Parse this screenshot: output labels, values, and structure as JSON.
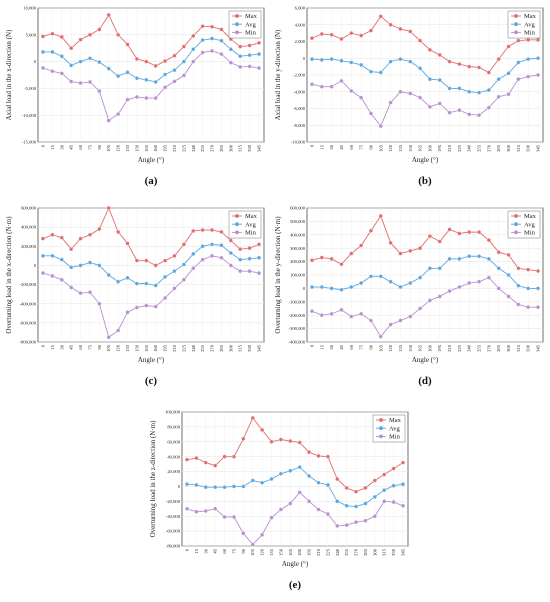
{
  "legend_labels": [
    "Max",
    "Avg",
    "Min"
  ],
  "colors": {
    "Max": "#e26b6b",
    "Avg": "#5aa7df",
    "Min": "#b78fd0"
  },
  "chart_data": [
    {
      "id": "a",
      "type": "line",
      "caption": "(a)",
      "title": "",
      "xlabel": "Angle (°)",
      "ylabel": "Axial load in the x-direction (N)",
      "ylim": [
        -15000,
        10000
      ],
      "yticks": [
        -15000,
        -10000,
        -5000,
        0,
        5000,
        10000
      ],
      "ytick_labels": [
        "-15,000",
        "-10,000",
        "-5,000",
        "0",
        "5,000",
        "10,000"
      ],
      "legend_position": "top-right",
      "grid": true,
      "x": [
        0,
        15,
        30,
        45,
        60,
        75,
        90,
        105,
        120,
        135,
        150,
        165,
        180,
        195,
        210,
        225,
        240,
        255,
        270,
        285,
        300,
        315,
        330,
        345
      ],
      "series": [
        {
          "name": "Max",
          "values": [
            4700,
            5200,
            4600,
            2500,
            4100,
            5000,
            6000,
            8700,
            5000,
            3200,
            500,
            0,
            -800,
            100,
            1100,
            2800,
            4800,
            6600,
            6500,
            6000,
            4200,
            2800,
            3000,
            3500
          ]
        },
        {
          "name": "Avg",
          "values": [
            1800,
            1800,
            1000,
            -700,
            0,
            600,
            -100,
            -1300,
            -2700,
            -2000,
            -3100,
            -3400,
            -3800,
            -2400,
            -1600,
            0,
            2300,
            4000,
            4300,
            3900,
            2300,
            1000,
            1200,
            1400
          ]
        },
        {
          "name": "Min",
          "values": [
            -1200,
            -1800,
            -2200,
            -3700,
            -4000,
            -3800,
            -5500,
            -11000,
            -9800,
            -7100,
            -6600,
            -6800,
            -6800,
            -4800,
            -3700,
            -2600,
            0,
            1700,
            2000,
            1400,
            -200,
            -1000,
            -900,
            -1200
          ]
        }
      ]
    },
    {
      "id": "b",
      "type": "line",
      "caption": "(b)",
      "title": "",
      "xlabel": "Angle (°)",
      "ylabel": "Axial load in the y-direction (N)",
      "ylim": [
        -10000,
        6000
      ],
      "yticks": [
        -10000,
        -8000,
        -6000,
        -4000,
        -2000,
        0,
        2000,
        4000,
        6000
      ],
      "ytick_labels": [
        "-10,000",
        "-8,000",
        "-6,000",
        "-4,000",
        "-2,000",
        "0",
        "2,000",
        "4,000",
        "6,000"
      ],
      "legend_position": "top-right",
      "grid": true,
      "x": [
        0,
        15,
        30,
        45,
        60,
        75,
        90,
        105,
        120,
        135,
        150,
        165,
        180,
        195,
        210,
        225,
        240,
        255,
        270,
        285,
        300,
        315,
        330,
        345
      ],
      "series": [
        {
          "name": "Max",
          "values": [
            2400,
            2900,
            2800,
            2300,
            3000,
            2700,
            3300,
            5000,
            4000,
            3500,
            3200,
            2100,
            1000,
            400,
            -400,
            -700,
            -1000,
            -1100,
            -1700,
            -100,
            1400,
            2100,
            2200,
            2200
          ]
        },
        {
          "name": "Avg",
          "values": [
            -100,
            -200,
            -100,
            -300,
            -500,
            -800,
            -1600,
            -1700,
            -400,
            -100,
            -400,
            -1200,
            -2500,
            -2600,
            -3600,
            -3600,
            -4000,
            -4100,
            -3800,
            -2500,
            -1800,
            -500,
            -100,
            0
          ]
        },
        {
          "name": "Min",
          "values": [
            -3100,
            -3400,
            -3400,
            -2700,
            -3900,
            -4700,
            -6600,
            -8100,
            -5300,
            -4000,
            -4200,
            -4700,
            -5800,
            -5400,
            -6500,
            -6200,
            -6700,
            -6800,
            -5900,
            -4600,
            -4300,
            -2500,
            -2200,
            -2000
          ]
        }
      ]
    },
    {
      "id": "c",
      "type": "line",
      "caption": "(c)",
      "title": "",
      "xlabel": "Angle (°)",
      "ylabel": "Overturning load in the x-direction (N·m)",
      "ylim": [
        -800000,
        600000
      ],
      "yticks": [
        -800000,
        -600000,
        -400000,
        -200000,
        0,
        200000,
        400000,
        600000
      ],
      "ytick_labels": [
        "-800,000",
        "-600,000",
        "-400,000",
        "-200,000",
        "0",
        "200,000",
        "400,000",
        "600,000"
      ],
      "legend_position": "top-right",
      "grid": true,
      "x": [
        0,
        15,
        30,
        45,
        60,
        75,
        90,
        105,
        120,
        135,
        150,
        165,
        180,
        195,
        210,
        225,
        240,
        255,
        270,
        285,
        300,
        315,
        330,
        345
      ],
      "series": [
        {
          "name": "Max",
          "values": [
            280000,
            320000,
            290000,
            170000,
            280000,
            320000,
            380000,
            600000,
            350000,
            230000,
            50000,
            50000,
            0,
            50000,
            100000,
            220000,
            360000,
            370000,
            370000,
            350000,
            260000,
            170000,
            180000,
            220000
          ]
        },
        {
          "name": "Avg",
          "values": [
            100000,
            100000,
            60000,
            -20000,
            0,
            30000,
            0,
            -100000,
            -170000,
            -130000,
            -190000,
            -190000,
            -210000,
            -120000,
            -60000,
            10000,
            120000,
            200000,
            220000,
            210000,
            130000,
            60000,
            70000,
            80000
          ]
        },
        {
          "name": "Min",
          "values": [
            -80000,
            -110000,
            -150000,
            -230000,
            -290000,
            -280000,
            -400000,
            -750000,
            -680000,
            -490000,
            -440000,
            -420000,
            -430000,
            -340000,
            -240000,
            -150000,
            -30000,
            60000,
            100000,
            80000,
            0,
            -60000,
            -60000,
            -80000
          ]
        }
      ]
    },
    {
      "id": "d",
      "type": "line",
      "caption": "(d)",
      "title": "",
      "xlabel": "Angle (°)",
      "ylabel": "Overturning load in the y-direction (N·m)",
      "ylim": [
        -400000,
        600000
      ],
      "yticks": [
        -400000,
        -300000,
        -200000,
        -100000,
        0,
        100000,
        200000,
        300000,
        400000,
        500000,
        600000
      ],
      "ytick_labels": [
        "-400,000",
        "-300,000",
        "-200,000",
        "-100,000",
        "0",
        "100,000",
        "200,000",
        "300,000",
        "400,000",
        "500,000",
        "600,000"
      ],
      "legend_position": "top-right",
      "grid": true,
      "x": [
        0,
        15,
        30,
        45,
        60,
        75,
        90,
        105,
        120,
        135,
        150,
        165,
        180,
        195,
        210,
        225,
        240,
        255,
        270,
        285,
        300,
        315,
        330,
        345
      ],
      "series": [
        {
          "name": "Max",
          "values": [
            210000,
            230000,
            220000,
            180000,
            260000,
            320000,
            430000,
            540000,
            340000,
            260000,
            280000,
            300000,
            390000,
            350000,
            440000,
            410000,
            420000,
            420000,
            360000,
            270000,
            250000,
            150000,
            140000,
            130000
          ]
        },
        {
          "name": "Avg",
          "values": [
            10000,
            10000,
            0,
            -10000,
            10000,
            40000,
            90000,
            90000,
            50000,
            10000,
            40000,
            80000,
            150000,
            150000,
            220000,
            220000,
            240000,
            240000,
            220000,
            150000,
            100000,
            20000,
            0,
            0
          ]
        },
        {
          "name": "Min",
          "values": [
            -170000,
            -200000,
            -190000,
            -160000,
            -210000,
            -190000,
            -240000,
            -360000,
            -270000,
            -240000,
            -210000,
            -150000,
            -90000,
            -60000,
            -20000,
            10000,
            40000,
            50000,
            80000,
            0,
            -60000,
            -120000,
            -140000,
            -140000
          ]
        }
      ]
    },
    {
      "id": "e",
      "type": "line",
      "caption": "(e)",
      "title": "",
      "xlabel": "Angle (°)",
      "ylabel": "Overturning load in the z-direction (N·m)",
      "ylim": [
        -80000,
        100000
      ],
      "yticks": [
        -80000,
        -60000,
        -40000,
        -20000,
        0,
        20000,
        40000,
        60000,
        80000,
        100000
      ],
      "ytick_labels": [
        "-80,000",
        "-60,000",
        "-40,000",
        "-20,000",
        "0",
        "20,000",
        "40,000",
        "60,000",
        "80,000",
        "100,000"
      ],
      "legend_position": "top-right",
      "grid": true,
      "x": [
        0,
        15,
        30,
        45,
        60,
        75,
        90,
        105,
        120,
        135,
        150,
        165,
        180,
        195,
        210,
        225,
        240,
        255,
        270,
        285,
        300,
        315,
        330,
        345
      ],
      "series": [
        {
          "name": "Max",
          "values": [
            36000,
            38000,
            32000,
            28000,
            40000,
            40000,
            64000,
            92000,
            76000,
            60000,
            63000,
            61000,
            59000,
            46000,
            41000,
            40000,
            10000,
            -2000,
            -7000,
            -2000,
            8000,
            16000,
            24000,
            32000
          ]
        },
        {
          "name": "Avg",
          "values": [
            3000,
            2000,
            -1000,
            -1000,
            -1000,
            0,
            0,
            8000,
            5000,
            10000,
            17000,
            21000,
            26000,
            14000,
            5000,
            2000,
            -20000,
            -26000,
            -27000,
            -23000,
            -14000,
            -5000,
            1000,
            3000
          ]
        },
        {
          "name": "Min",
          "values": [
            -30000,
            -34000,
            -33000,
            -30000,
            -41000,
            -41000,
            -63000,
            -78000,
            -65000,
            -42000,
            -31000,
            -23000,
            -8000,
            -20000,
            -31000,
            -37000,
            -53000,
            -52000,
            -48000,
            -46000,
            -40000,
            -20000,
            -21000,
            -26000
          ]
        }
      ]
    }
  ]
}
